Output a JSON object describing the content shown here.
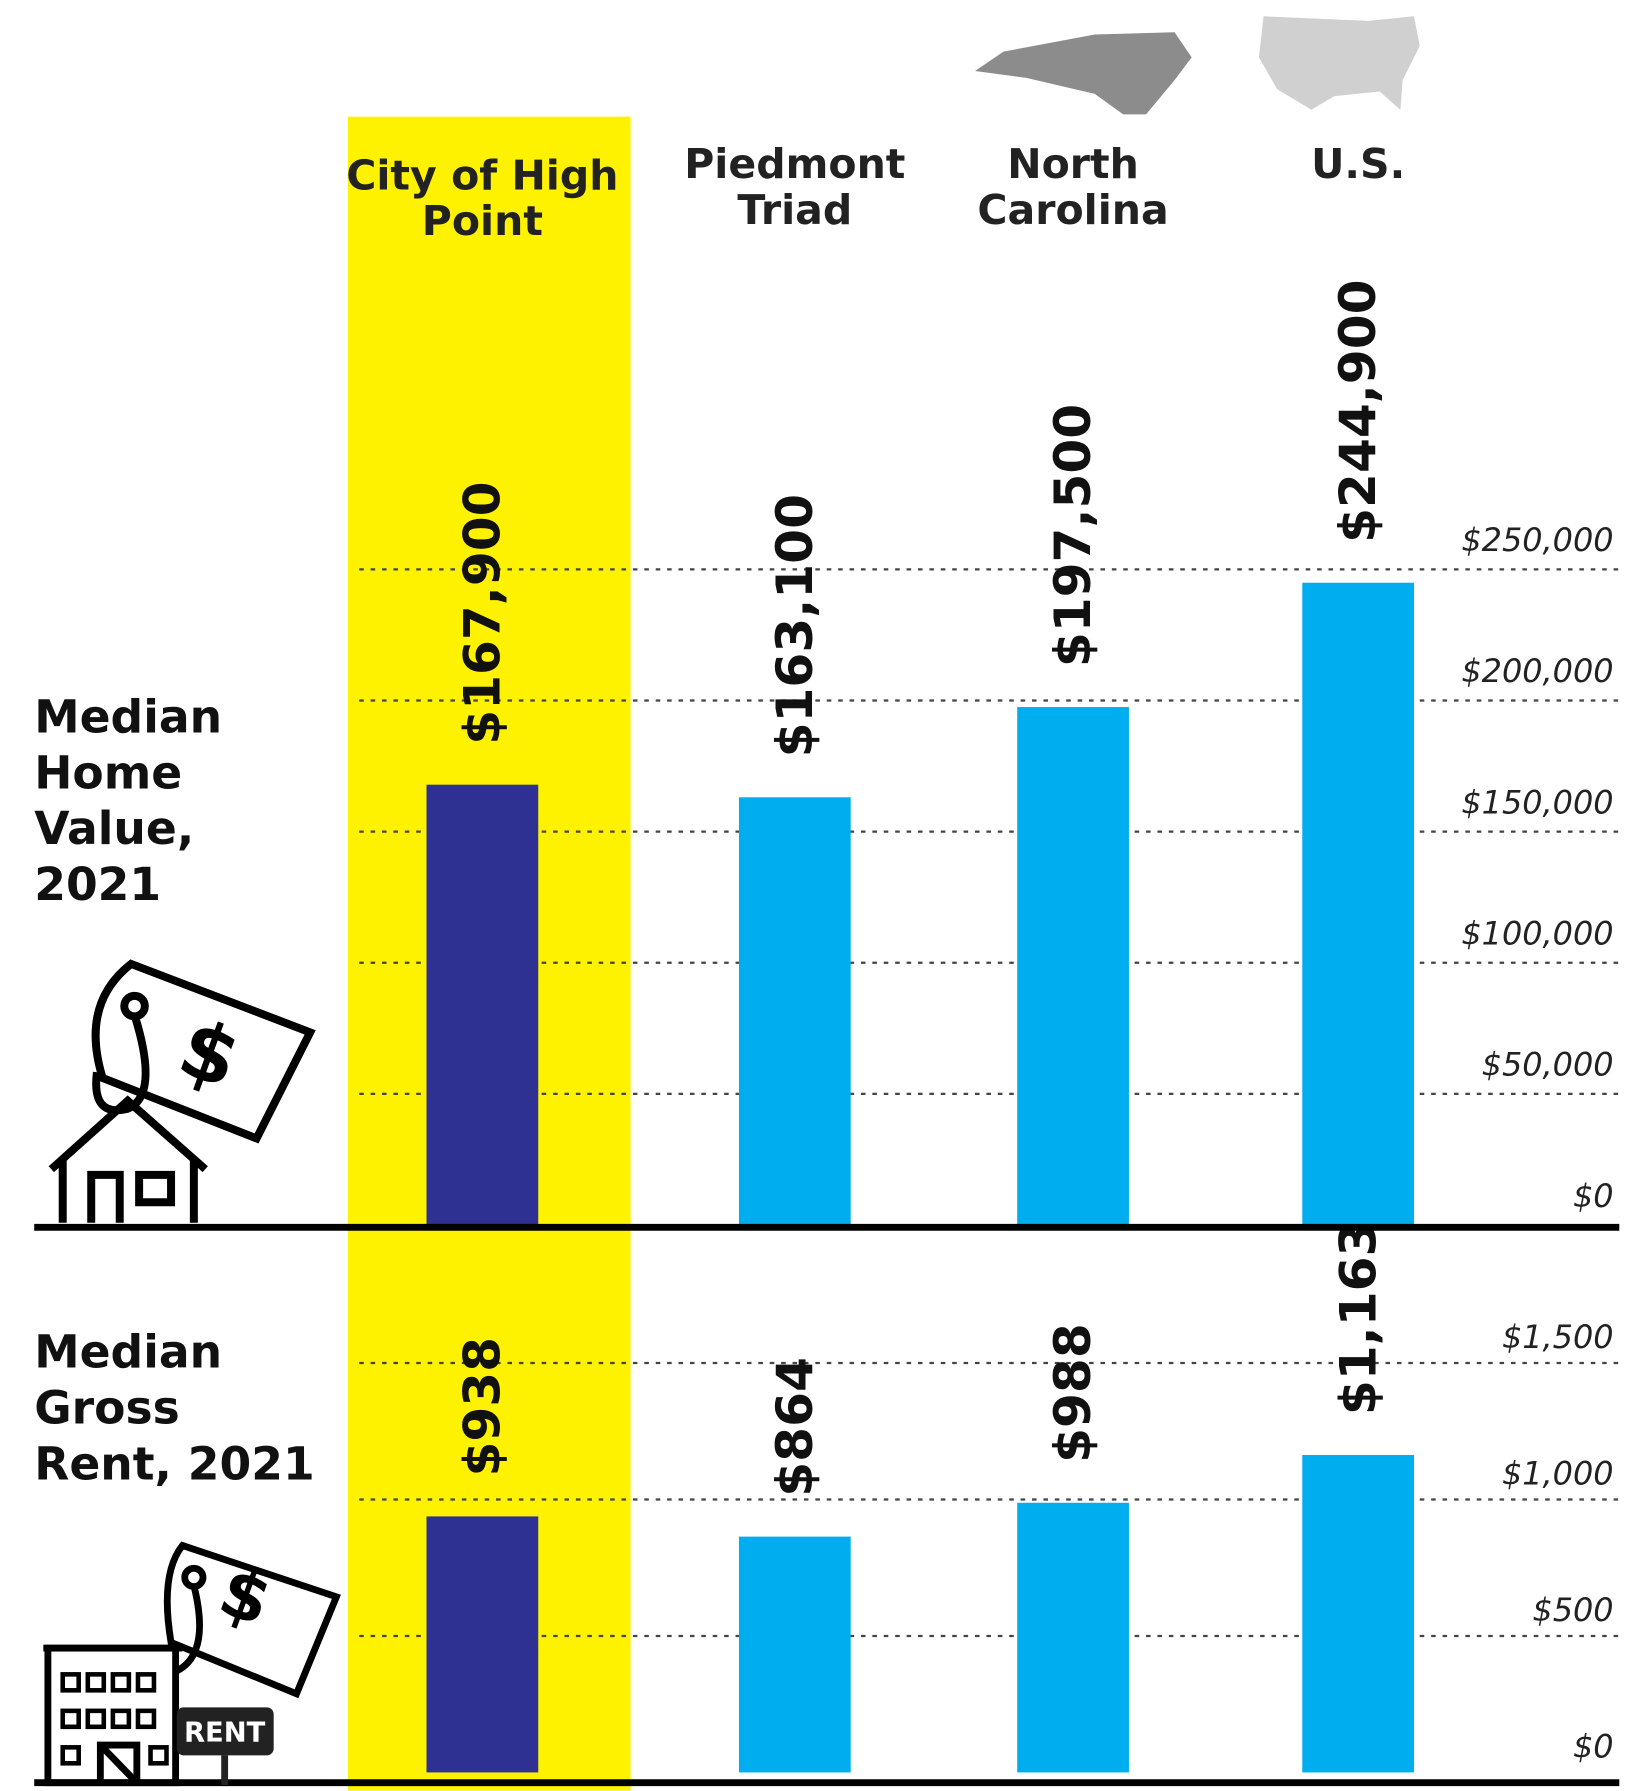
{
  "chart_data": [
    {
      "type": "bar",
      "title": "Median Home Value, 2021",
      "categories": [
        "City of High Point",
        "Piedmont Triad",
        "North Carolina",
        "U.S."
      ],
      "values": [
        167900,
        163100,
        197500,
        244900
      ],
      "value_labels": [
        "$167,900",
        "$163,100",
        "$197,500",
        "$244,900"
      ],
      "colors": [
        "#2e3192",
        "#00aeef",
        "#00aeef",
        "#00aeef"
      ],
      "ylim": [
        0,
        250000
      ],
      "yticks": [
        {
          "value": 0,
          "label": "$0"
        },
        {
          "value": 50000,
          "label": "$50,000"
        },
        {
          "value": 100000,
          "label": "$100,000"
        },
        {
          "value": 150000,
          "label": "$150,000"
        },
        {
          "value": 200000,
          "label": "$200,000"
        },
        {
          "value": 250000,
          "label": "$250,000"
        }
      ],
      "grid": true
    },
    {
      "type": "bar",
      "title": "Median Gross Rent, 2021",
      "values": [
        938,
        864,
        988,
        1163
      ],
      "value_labels": [
        "$938",
        "$864",
        "$988",
        "$1,163"
      ],
      "colors": [
        "#2e3192",
        "#00aeef",
        "#00aeef",
        "#00aeef"
      ],
      "ylim": [
        0,
        1500
      ],
      "yticks": [
        {
          "value": 0,
          "label": "$0"
        },
        {
          "value": 500,
          "label": "$500"
        },
        {
          "value": 1000,
          "label": "$1,000"
        },
        {
          "value": 1500,
          "label": "$1,500"
        }
      ],
      "grid": true
    }
  ]
}
